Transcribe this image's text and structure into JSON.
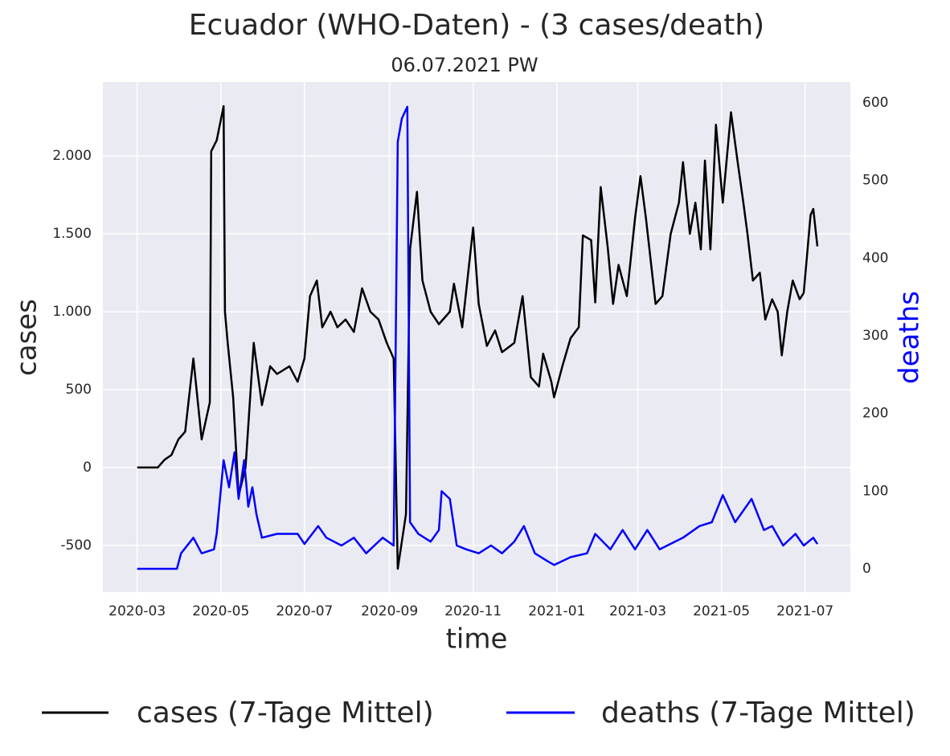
{
  "chart_data": {
    "type": "line",
    "title": "Ecuador (WHO-Daten) - (3 cases/death)",
    "subtitle": "06.07.2021 PW",
    "x_label": "time",
    "y_label": "cases",
    "y2_label": "deaths",
    "xlim": [
      -25,
      520
    ],
    "xticks": [
      {
        "value": 0,
        "label": "2020-03"
      },
      {
        "value": 61,
        "label": "2020-05"
      },
      {
        "value": 122,
        "label": "2020-07"
      },
      {
        "value": 184,
        "label": "2020-09"
      },
      {
        "value": 245,
        "label": "2020-11"
      },
      {
        "value": 306,
        "label": "2021-01"
      },
      {
        "value": 365,
        "label": "2021-03"
      },
      {
        "value": 426,
        "label": "2021-05"
      },
      {
        "value": 487,
        "label": "2021-07"
      }
    ],
    "ylim": [
      -800,
      2475
    ],
    "yticks": [
      -500,
      0,
      500,
      {
        "value": 1000,
        "label": "1.000"
      },
      {
        "value": 1500,
        "label": "1.500"
      },
      {
        "value": 2000,
        "label": "2.000"
      }
    ],
    "y2lim": [
      -30,
      627
    ],
    "y2ticks": [
      0,
      100,
      200,
      300,
      400,
      500,
      600
    ],
    "grid": true,
    "legend": "bottom",
    "series": [
      {
        "name": "cases (7-Tage Mittel)",
        "color": "#000000",
        "x": [
          0,
          15,
          20,
          25,
          30,
          35,
          41,
          47,
          53,
          54,
          58,
          63,
          64,
          66,
          70,
          74,
          79,
          85,
          91,
          97,
          102,
          111,
          117,
          122,
          126,
          131,
          135,
          141,
          146,
          152,
          158,
          164,
          170,
          176,
          182,
          187,
          190,
          196,
          199,
          204,
          208,
          214,
          220,
          228,
          231,
          237,
          242,
          245,
          249,
          255,
          261,
          266,
          275,
          281,
          287,
          293,
          296,
          302,
          304,
          310,
          316,
          322,
          325,
          331,
          334,
          338,
          343,
          347,
          351,
          357,
          363,
          367,
          371,
          378,
          383,
          389,
          395,
          398,
          403,
          407,
          411,
          414,
          418,
          422,
          427,
          433,
          438,
          442,
          445,
          449,
          454,
          458,
          463,
          467,
          470,
          474,
          478,
          483,
          486,
          491,
          493,
          496
        ],
        "values": [
          0,
          0,
          50,
          80,
          180,
          230,
          700,
          180,
          420,
          2030,
          2100,
          2320,
          1000,
          800,
          450,
          -180,
          0,
          800,
          400,
          650,
          600,
          650,
          550,
          700,
          1100,
          1200,
          900,
          1000,
          900,
          950,
          870,
          1150,
          1000,
          950,
          800,
          700,
          -650,
          -300,
          1400,
          1770,
          1200,
          1000,
          920,
          1000,
          1180,
          900,
          1300,
          1540,
          1050,
          780,
          880,
          740,
          800,
          1100,
          580,
          520,
          730,
          550,
          450,
          650,
          830,
          900,
          1490,
          1460,
          1060,
          1800,
          1420,
          1050,
          1300,
          1100,
          1600,
          1870,
          1600,
          1050,
          1100,
          1500,
          1700,
          1960,
          1500,
          1700,
          1400,
          1970,
          1400,
          2200,
          1700,
          2280,
          1950,
          1700,
          1500,
          1200,
          1250,
          950,
          1080,
          1000,
          720,
          1000,
          1200,
          1080,
          1120,
          1620,
          1660,
          1420
        ]
      },
      {
        "name": "deaths (7-Tage Mittel)",
        "color": "#0000ff",
        "axis": "y2",
        "x": [
          0,
          29,
          32,
          41,
          47,
          56,
          58,
          63,
          67,
          71,
          74,
          78,
          81,
          84,
          87,
          91,
          102,
          117,
          122,
          132,
          138,
          149,
          158,
          167,
          179,
          187,
          190,
          193,
          197,
          199,
          205,
          214,
          220,
          222,
          228,
          233,
          240,
          249,
          258,
          266,
          275,
          282,
          290,
          299,
          304,
          316,
          328,
          334,
          345,
          354,
          363,
          372,
          381,
          398,
          410,
          419,
          427,
          436,
          448,
          457,
          463,
          471,
          480,
          486,
          493,
          496
        ],
        "values": [
          0,
          0,
          20,
          40,
          20,
          25,
          45,
          140,
          105,
          150,
          90,
          140,
          80,
          105,
          70,
          40,
          45,
          45,
          32,
          55,
          40,
          30,
          40,
          20,
          40,
          30,
          550,
          580,
          595,
          60,
          45,
          35,
          50,
          100,
          90,
          30,
          25,
          20,
          30,
          20,
          35,
          55,
          20,
          10,
          5,
          15,
          20,
          45,
          25,
          50,
          25,
          50,
          25,
          40,
          55,
          60,
          95,
          60,
          90,
          50,
          55,
          30,
          45,
          30,
          40,
          32
        ]
      }
    ]
  }
}
